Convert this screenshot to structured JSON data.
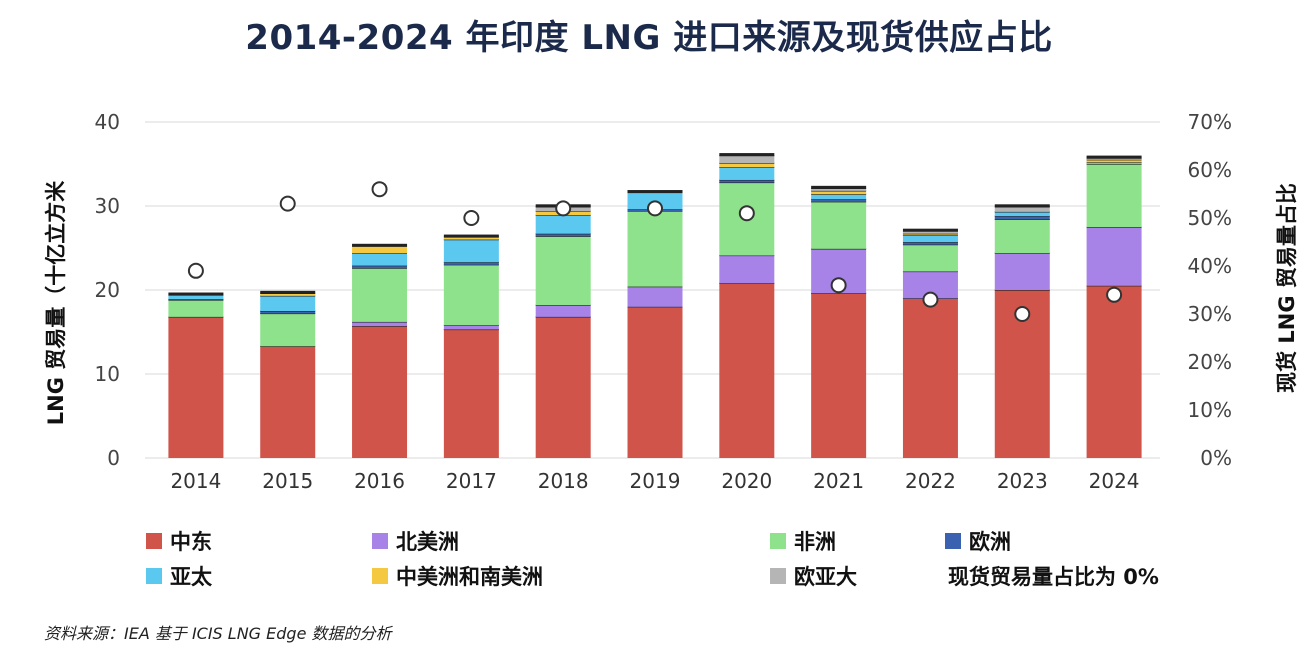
{
  "title": "2014-2024 年印度 LNG 进口来源及现货供应占比",
  "source": "资料来源：IEA 基于 ICIS LNG Edge 数据的分析",
  "chart_data": {
    "type": "bar",
    "stacked": true,
    "title": "2014-2024 年印度 LNG 进口来源及现货供应占比",
    "ylabel": "LNG 贸易量（十亿立方米",
    "y2label": "现货 LNG 贸易量占比",
    "ylim": [
      0,
      40
    ],
    "y2lim": [
      0,
      0.7
    ],
    "yticks": [
      "0",
      "10",
      "20",
      "30",
      "40"
    ],
    "y2ticks": [
      "0%",
      "10%",
      "20%",
      "30%",
      "40%",
      "50%",
      "60%",
      "70%"
    ],
    "grid": true,
    "categories": [
      "2014",
      "2015",
      "2016",
      "2017",
      "2018",
      "2019",
      "2020",
      "2021",
      "2022",
      "2023",
      "2024"
    ],
    "series": [
      {
        "name": "中东",
        "color": "#d0544a",
        "values": [
          16.8,
          13.3,
          15.7,
          15.3,
          16.8,
          18.0,
          20.8,
          19.6,
          19.0,
          20.0,
          20.5
        ]
      },
      {
        "name": "北美洲",
        "color": "#a783e8",
        "values": [
          0.0,
          0.0,
          0.5,
          0.5,
          1.4,
          2.4,
          3.3,
          5.3,
          3.2,
          4.4,
          7.0
        ]
      },
      {
        "name": "非洲",
        "color": "#8fe28c",
        "values": [
          2.0,
          3.9,
          6.4,
          7.2,
          8.2,
          9.0,
          8.7,
          5.6,
          3.2,
          4.0,
          7.5
        ]
      },
      {
        "name": "欧洲",
        "color": "#3a62b0",
        "values": [
          0.1,
          0.3,
          0.3,
          0.3,
          0.3,
          0.2,
          0.3,
          0.3,
          0.3,
          0.4,
          0.0
        ]
      },
      {
        "name": "亚太",
        "color": "#5bc8f0",
        "values": [
          0.5,
          1.8,
          1.5,
          2.7,
          2.2,
          2.0,
          1.5,
          0.6,
          0.8,
          0.5,
          0.2
        ]
      },
      {
        "name": "中美洲和南美洲",
        "color": "#f5c842",
        "values": [
          0.0,
          0.3,
          0.8,
          0.3,
          0.5,
          0.0,
          0.5,
          0.4,
          0.2,
          0.0,
          0.3
        ]
      },
      {
        "name": "欧亚大",
        "color": "#b5b5b5",
        "values": [
          0.0,
          0.0,
          0.0,
          0.0,
          0.5,
          0.0,
          0.9,
          0.3,
          0.3,
          0.6,
          0.2
        ]
      }
    ],
    "blackcap": 0.3,
    "spot_share": {
      "name": "现货贸易量占比为 0%",
      "values": [
        0.39,
        0.53,
        0.56,
        0.5,
        0.52,
        0.52,
        0.51,
        0.36,
        0.33,
        0.3,
        0.34
      ]
    }
  }
}
